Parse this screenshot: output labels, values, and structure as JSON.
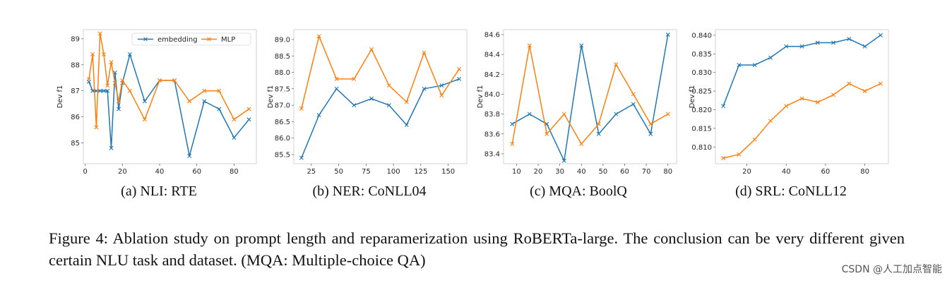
{
  "chart_data": [
    {
      "id": "a",
      "type": "line",
      "ylabel": "Dev f1",
      "xlim": [
        -1,
        92
      ],
      "ylim": [
        84.2,
        89.35
      ],
      "xticks": [
        0,
        20,
        40,
        60,
        80
      ],
      "yticks": [
        85,
        86,
        87,
        88,
        89
      ],
      "ytick_decimals": 0,
      "legend": true,
      "legend_position": "top-right",
      "series": [
        {
          "name": "embedding",
          "color": "#1f77b4",
          "x": [
            2,
            4,
            6,
            8,
            10,
            12,
            14,
            16,
            18,
            20,
            24,
            32,
            40,
            48,
            56,
            64,
            72,
            80,
            88
          ],
          "y": [
            87.35,
            87.0,
            87.0,
            87.0,
            87.0,
            87.0,
            84.8,
            87.7,
            86.3,
            87.3,
            88.4,
            86.6,
            87.4,
            87.4,
            84.5,
            86.6,
            86.3,
            85.2,
            85.9
          ]
        },
        {
          "name": "MLP",
          "color": "#ff7f0e",
          "x": [
            2,
            4,
            6,
            8,
            10,
            12,
            14,
            16,
            18,
            20,
            24,
            32,
            40,
            48,
            56,
            64,
            72,
            80,
            88
          ],
          "y": [
            87.45,
            88.4,
            85.6,
            89.2,
            88.4,
            87.2,
            88.1,
            87.3,
            86.6,
            87.4,
            87.0,
            85.9,
            87.4,
            87.4,
            86.6,
            87.0,
            87.0,
            85.9,
            86.3
          ]
        }
      ]
    },
    {
      "id": "b",
      "type": "line",
      "ylabel": "Dev f1",
      "xlim": [
        9,
        167
      ],
      "ylim": [
        85.22,
        89.3
      ],
      "xticks": [
        25,
        50,
        75,
        100,
        125,
        150
      ],
      "yticks": [
        85.5,
        86.0,
        86.5,
        87.0,
        87.5,
        88.0,
        88.5,
        89.0
      ],
      "ytick_decimals": 1,
      "legend": false,
      "series": [
        {
          "name": "embedding",
          "color": "#1f77b4",
          "x": [
            16,
            32,
            48,
            64,
            80,
            96,
            112,
            128,
            144,
            160
          ],
          "y": [
            85.4,
            86.7,
            87.5,
            87.0,
            87.2,
            87.0,
            86.4,
            87.5,
            87.6,
            87.8
          ]
        },
        {
          "name": "MLP",
          "color": "#ff7f0e",
          "x": [
            16,
            32,
            48,
            64,
            80,
            96,
            112,
            128,
            144,
            160
          ],
          "y": [
            86.9,
            89.1,
            87.8,
            87.8,
            88.7,
            87.6,
            87.1,
            88.6,
            87.3,
            88.1
          ]
        }
      ]
    },
    {
      "id": "c",
      "type": "line",
      "ylabel": "Dev f1",
      "xlim": [
        4,
        84
      ],
      "ylim": [
        83.3,
        84.65
      ],
      "xticks": [
        10,
        20,
        30,
        40,
        50,
        60,
        70,
        80
      ],
      "yticks": [
        83.4,
        83.6,
        83.8,
        84.0,
        84.2,
        84.4,
        84.6
      ],
      "ytick_decimals": 1,
      "legend": false,
      "series": [
        {
          "name": "embedding",
          "color": "#1f77b4",
          "x": [
            8,
            16,
            24,
            32,
            40,
            48,
            56,
            64,
            72,
            80
          ],
          "y": [
            83.7,
            83.8,
            83.7,
            83.33,
            84.49,
            83.6,
            83.8,
            83.9,
            83.6,
            84.6
          ]
        },
        {
          "name": "MLP",
          "color": "#ff7f0e",
          "x": [
            8,
            16,
            24,
            32,
            40,
            48,
            56,
            64,
            72,
            80
          ],
          "y": [
            83.5,
            84.49,
            83.6,
            83.8,
            83.5,
            83.7,
            84.3,
            84.0,
            83.7,
            83.8
          ]
        }
      ]
    },
    {
      "id": "d",
      "type": "line",
      "ylabel": "Dev f1",
      "xlim": [
        4,
        92
      ],
      "ylim": [
        0.8055,
        0.8415
      ],
      "xticks": [
        20,
        40,
        60,
        80
      ],
      "yticks": [
        0.81,
        0.815,
        0.82,
        0.825,
        0.83,
        0.835,
        0.84
      ],
      "ytick_decimals": 3,
      "legend": false,
      "series": [
        {
          "name": "embedding",
          "color": "#1f77b4",
          "x": [
            8,
            16,
            24,
            32,
            40,
            48,
            56,
            64,
            72,
            80,
            88
          ],
          "y": [
            0.821,
            0.832,
            0.832,
            0.834,
            0.837,
            0.837,
            0.838,
            0.838,
            0.839,
            0.837,
            0.84
          ]
        },
        {
          "name": "MLP",
          "color": "#ff7f0e",
          "x": [
            8,
            16,
            24,
            32,
            40,
            48,
            56,
            64,
            72,
            80,
            88
          ],
          "y": [
            0.807,
            0.808,
            0.812,
            0.817,
            0.821,
            0.823,
            0.822,
            0.824,
            0.827,
            0.825,
            0.827
          ]
        }
      ]
    }
  ],
  "subcaptions": {
    "a": "(a)  NLI: RTE",
    "b": "(b)  NER: CoNLL04",
    "c": "(c)  MQA: BoolQ",
    "d": "(d)  SRL: CoNLL12"
  },
  "caption": "Figure 4:  Ablation study on prompt length and reparamerization using RoBERTa-large.  The conclusion can be very different given certain NLU task and dataset. (MQA: Multiple-choice QA)",
  "watermark": "CSDN @人工加点智能"
}
